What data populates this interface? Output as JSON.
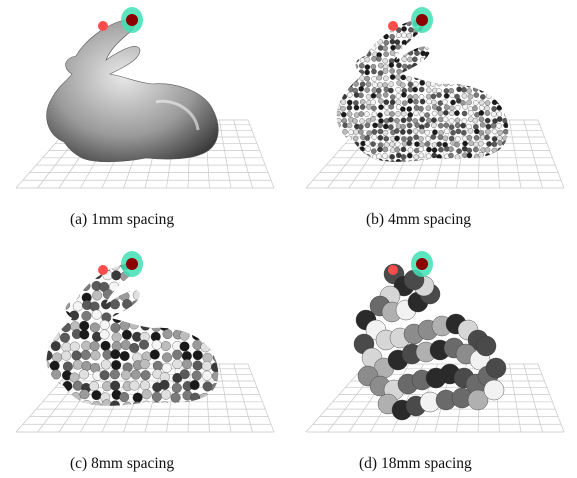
{
  "figure": {
    "panels": [
      {
        "id": "a",
        "caption": "(a)  1mm spacing",
        "spacing_mm": 1
      },
      {
        "id": "b",
        "caption": "(b)  4mm spacing",
        "spacing_mm": 4
      },
      {
        "id": "c",
        "caption": "(c)  8mm spacing",
        "spacing_mm": 8
      },
      {
        "id": "d",
        "caption": "(d)  18mm spacing",
        "spacing_mm": 18
      }
    ],
    "colors": {
      "grid": "#c8c8c8",
      "goal_halo": "#3fe0b4",
      "goal_core": "#8b0000",
      "marker": "#ff4d4d"
    }
  }
}
